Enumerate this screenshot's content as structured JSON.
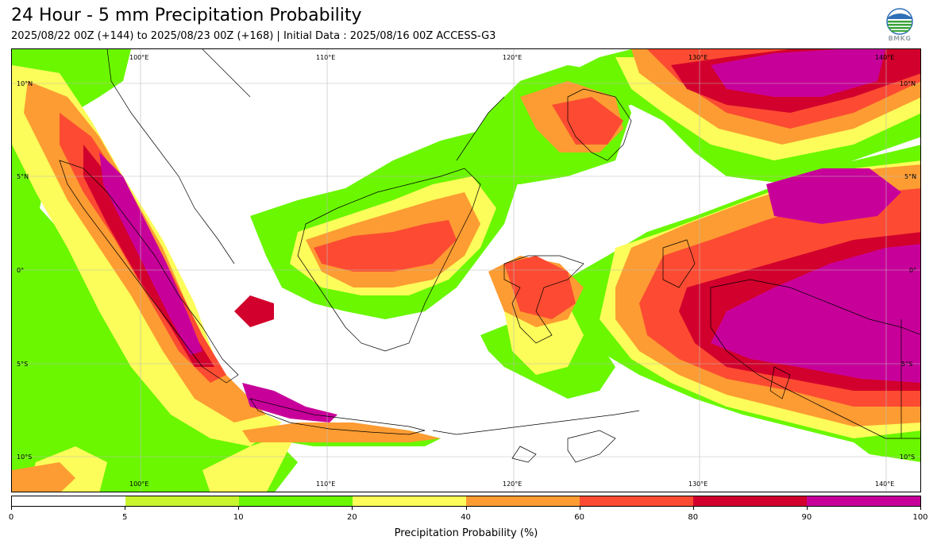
{
  "header": {
    "title": "24 Hour - 5 mm Precipitation Probability",
    "subtitle": "2025/08/22 00Z (+144) to 2025/08/23 00Z (+168) | Initial Data : 2025/08/16 00Z ACCESS-G3",
    "logo_text": "BMKG"
  },
  "map": {
    "lon_labels_top": [
      "100°E",
      "110°E",
      "120°E",
      "130°E",
      "140°E"
    ],
    "lon_labels_bottom": [
      "100°E",
      "110°E",
      "120°E",
      "130°E",
      "140°E"
    ],
    "lat_labels_left": [
      "10°N",
      "5°N",
      "0°",
      "5°S",
      "10°S"
    ],
    "lat_labels_right": [
      "10°N",
      "5°N",
      "0°",
      "5°S",
      "10°S"
    ],
    "gridlines": true
  },
  "colorbar": {
    "label": "Precipitation Probability (%)",
    "ticks": [
      "0",
      "5",
      "10",
      "20",
      "40",
      "60",
      "80",
      "90",
      "100"
    ],
    "colors": [
      "#ffffff",
      "#c8f52d",
      "#6af700",
      "#fcfc5a",
      "#fd9c32",
      "#fc4b32",
      "#d2002c",
      "#c8009a"
    ]
  }
}
